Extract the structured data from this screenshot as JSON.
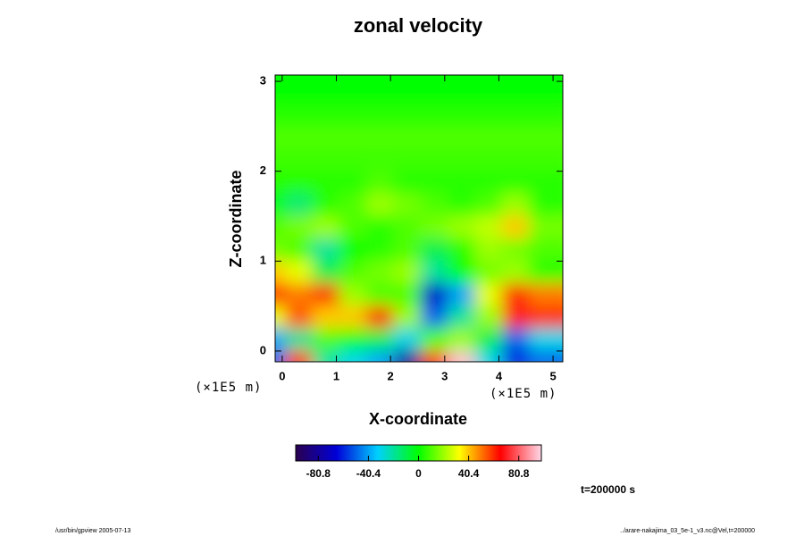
{
  "chart_data": {
    "type": "heatmap",
    "title": "zonal velocity",
    "xlabel": "X-coordinate",
    "ylabel": "Z-coordinate",
    "xunit": "(×1E5 m)",
    "yunit": "(×1E5 m)",
    "x": [
      0,
      0.5,
      1,
      1.5,
      2,
      2.5,
      3,
      3.5,
      4,
      4.5,
      5
    ],
    "y": [
      0,
      0.25,
      0.5,
      0.75,
      1,
      1.25,
      1.5,
      1.75,
      2,
      2.25,
      2.5,
      2.75,
      3
    ],
    "z": [
      [
        -50,
        60,
        -20,
        -30,
        -40,
        -80,
        60,
        95,
        -30,
        -60,
        -50
      ],
      [
        -40,
        -20,
        10,
        0,
        -10,
        -30,
        10,
        20,
        -10,
        -50,
        -30
      ],
      [
        30,
        55,
        40,
        40,
        60,
        20,
        -50,
        -20,
        20,
        70,
        60
      ],
      [
        60,
        50,
        60,
        20,
        10,
        10,
        -70,
        -40,
        30,
        60,
        50
      ],
      [
        40,
        30,
        -10,
        10,
        15,
        20,
        -20,
        0,
        15,
        20,
        5
      ],
      [
        15,
        10,
        -20,
        0,
        5,
        10,
        -10,
        5,
        20,
        15,
        10
      ],
      [
        10,
        15,
        20,
        10,
        5,
        10,
        15,
        20,
        25,
        40,
        15
      ],
      [
        0,
        -15,
        5,
        10,
        20,
        15,
        10,
        5,
        10,
        20,
        5
      ],
      [
        5,
        5,
        5,
        5,
        10,
        5,
        5,
        5,
        5,
        5,
        5
      ],
      [
        8,
        8,
        8,
        8,
        8,
        8,
        8,
        8,
        8,
        8,
        8
      ],
      [
        10,
        10,
        10,
        10,
        10,
        10,
        10,
        10,
        10,
        10,
        10
      ],
      [
        5,
        5,
        5,
        5,
        5,
        5,
        5,
        5,
        5,
        5,
        5
      ],
      [
        0,
        0,
        0,
        0,
        0,
        0,
        0,
        0,
        0,
        0,
        0
      ]
    ],
    "xlim": [
      -0.13,
      5.18
    ],
    "ylim": [
      -0.12,
      3.07
    ],
    "xticks": [
      0,
      1,
      2,
      3,
      4,
      5
    ],
    "yticks": [
      0,
      1,
      2,
      3
    ],
    "clim": [
      -99,
      99
    ],
    "cticks": [
      -80.8,
      -40.4,
      0,
      40.4,
      80.8
    ],
    "colormap": [
      "#2a0050",
      "#0000d8",
      "#00d0ff",
      "#00ff00",
      "#ffff00",
      "#ff0000",
      "#ffd8e8"
    ],
    "annotation": "t=200000 s",
    "footer_left": "/usr/bin/gpview 2005-07-13",
    "footer_right": "../arare-nakajima_03_5e-1_v3.nc@Vel,t=200000"
  }
}
